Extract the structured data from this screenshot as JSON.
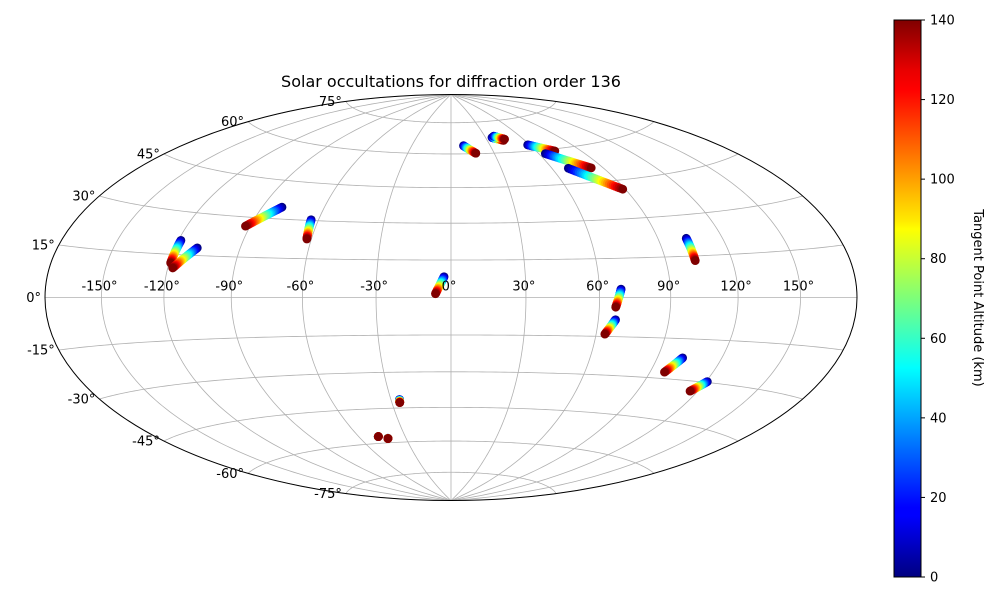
{
  "chart_data": {
    "type": "scatter",
    "projection": "hammer",
    "title": "Solar occultations for diffraction order 136",
    "xlim": [
      -180,
      180
    ],
    "ylim": [
      -75,
      75
    ],
    "grid": true,
    "lon_ticks": [
      -150,
      -120,
      -90,
      -60,
      -30,
      0,
      30,
      60,
      90,
      120,
      150
    ],
    "lon_tick_labels": [
      "-150°",
      "-120°",
      "-90°",
      "-60°",
      "-30°",
      "0°",
      "30°",
      "60°",
      "90°",
      "120°",
      "150°"
    ],
    "lat_ticks": [
      -75,
      -60,
      -45,
      -30,
      -15,
      0,
      15,
      30,
      45,
      60,
      75
    ],
    "lat_tick_labels": [
      "-75°",
      "-60°",
      "-45°",
      "-30°",
      "-15°",
      "0°",
      "15°",
      "30°",
      "45°",
      "60°",
      "75°"
    ],
    "colorbar": {
      "label": "Tangent Point Altitude (km)",
      "colormap": "jet",
      "range": [
        0,
        140
      ],
      "ticks": [
        0,
        20,
        40,
        60,
        80,
        100,
        120,
        140
      ],
      "tick_labels": [
        "0",
        "20",
        "40",
        "60",
        "80",
        "100",
        "120",
        "140"
      ],
      "location": "right"
    },
    "tracks": [
      {
        "start": [
          -118.8,
          20.0
        ],
        "end": [
          -119.3,
          12.0
        ]
      },
      {
        "start": [
          -109.5,
          17.7
        ],
        "end": [
          -117.7,
          10.3
        ]
      },
      {
        "start": [
          -80.4,
          34.6
        ],
        "end": [
          -92.2,
          26.6
        ]
      },
      {
        "start": [
          -63.4,
          30.3
        ],
        "end": [
          -62.0,
          22.7
        ]
      },
      {
        "start": [
          -2.8,
          8.3
        ],
        "end": [
          -6.2,
          1.5
        ]
      },
      {
        "start": [
          9.6,
          63.8
        ],
        "end": [
          17.3,
          60.2
        ]
      },
      {
        "start": [
          35.5,
          67.2
        ],
        "end": [
          43.3,
          65.6
        ]
      },
      {
        "start": [
          37.8,
          67.8
        ],
        "end": [
          44.9,
          66.1
        ]
      },
      {
        "start": [
          58.5,
          62.8
        ],
        "end": [
          72.6,
          59.1
        ]
      },
      {
        "start": [
          64.4,
          58.4
        ],
        "end": [
          83.1,
          50.8
        ]
      },
      {
        "start": [
          69.6,
          51.5
        ],
        "end": [
          88.7,
          41.4
        ]
      },
      {
        "start": [
          103.0,
          21.5
        ],
        "end": [
          103.1,
          13.3
        ]
      },
      {
        "start": [
          69.0,
          3.2
        ],
        "end": [
          66.8,
          -3.7
        ]
      },
      {
        "start": [
          67.2,
          -8.5
        ],
        "end": [
          63.7,
          -14.1
        ]
      },
      {
        "start": [
          101.6,
          -22.0
        ],
        "end": [
          96.8,
          -27.6
        ]
      },
      {
        "start": [
          120.7,
          -29.7
        ],
        "end": [
          116.1,
          -33.6
        ]
      },
      {
        "start": [
          -25.7,
          -41.4
        ],
        "end": [
          -26.0,
          -42.7
        ]
      },
      {
        "start": [
          -47.5,
          -57.0
        ],
        "end": [
          -47.4,
          -57.0
        ]
      },
      {
        "start": [
          -42.0,
          -58.0
        ],
        "end": [
          -42.1,
          -58.1
        ]
      }
    ]
  }
}
